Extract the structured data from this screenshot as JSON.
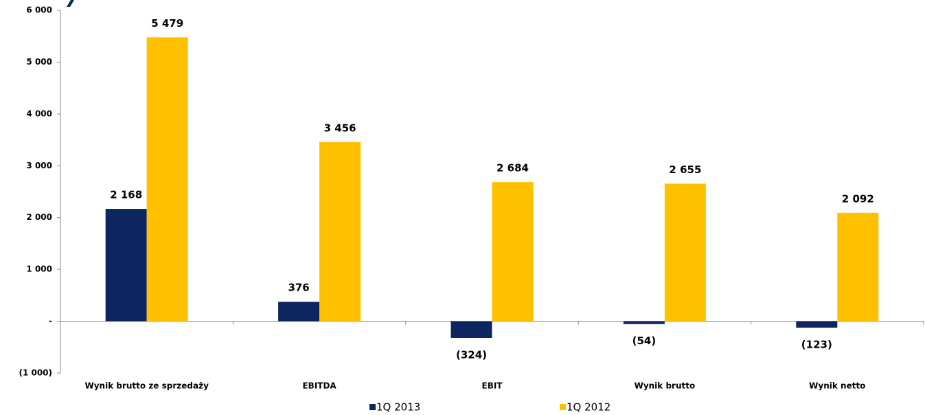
{
  "chart_data": {
    "type": "bar",
    "categories": [
      "Wynik brutto ze sprzedaży",
      "EBITDA",
      "EBIT",
      "Wynik brutto",
      "Wynik netto"
    ],
    "series": [
      {
        "name": "1Q 2013",
        "color": "#0d2660",
        "values": [
          2168,
          376,
          -324,
          -54,
          -123
        ],
        "value_labels": [
          "2 168",
          "376",
          "(324)",
          "(54)",
          "(123)"
        ]
      },
      {
        "name": "1Q 2012",
        "color": "#ffc000",
        "values": [
          5479,
          3456,
          2684,
          2655,
          2092
        ],
        "value_labels": [
          "5 479",
          "3 456",
          "2 684",
          "2 655",
          "2 092"
        ]
      }
    ],
    "ylim": [
      -1000,
      6000
    ],
    "yticks": [
      {
        "value": -1000,
        "label": "(1 000)"
      },
      {
        "value": 0,
        "label": "-"
      },
      {
        "value": 1000,
        "label": "1 000"
      },
      {
        "value": 2000,
        "label": "2 000"
      },
      {
        "value": 3000,
        "label": "3 000"
      },
      {
        "value": 4000,
        "label": "4 000"
      },
      {
        "value": 5000,
        "label": "5 000"
      },
      {
        "value": 6000,
        "label": "6 000"
      }
    ],
    "legend": "bottom"
  }
}
